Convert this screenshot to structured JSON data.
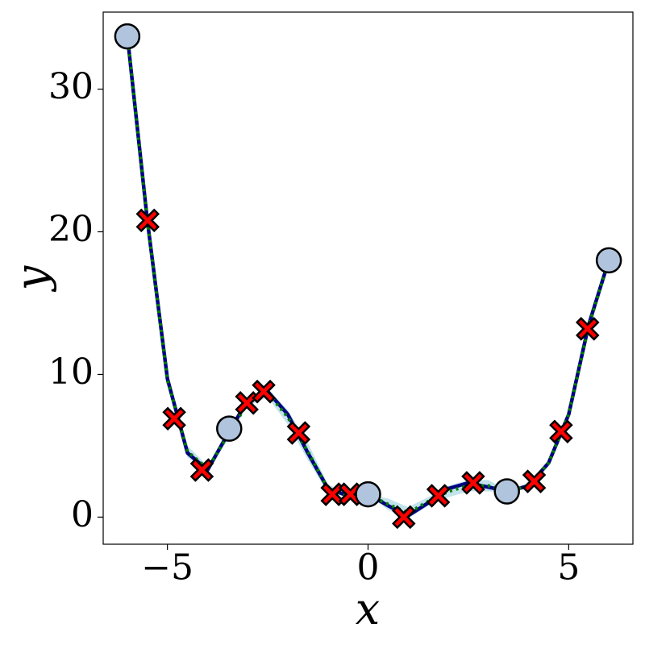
{
  "chart_data": {
    "type": "line",
    "xlabel": "x",
    "ylabel": "y",
    "xlim": [
      -6.6,
      6.6
    ],
    "ylim": [
      -1.9,
      35.4
    ],
    "xticks": [
      {
        "value": -5,
        "label": "−5"
      },
      0,
      5
    ],
    "yticks": [
      0,
      10,
      20,
      30
    ],
    "x": [
      -6,
      -5.5,
      -5,
      -4.5,
      -4,
      -3.5,
      -3,
      -2.5,
      -2,
      -1.5,
      -1,
      -0.5,
      0,
      0.5,
      1,
      1.5,
      2,
      2.5,
      3,
      3.5,
      4,
      4.5,
      5,
      5.5,
      6
    ],
    "band": {
      "color": "#add8e6",
      "lower": [
        33.8,
        20.7,
        9.3,
        4.2,
        3.2,
        5.4,
        7.8,
        8.4,
        6.5,
        4.0,
        1.7,
        1.4,
        1.6,
        0.5,
        -0.1,
        0.8,
        1.4,
        1.8,
        1.8,
        1.8,
        2.0,
        3.6,
        7.0,
        13.2,
        18.0
      ],
      "upper": [
        33.8,
        20.9,
        9.9,
        5.0,
        3.6,
        6.0,
        8.2,
        9.0,
        7.5,
        5.2,
        2.3,
        1.6,
        1.6,
        1.3,
        0.7,
        1.4,
        2.2,
        2.6,
        2.6,
        1.8,
        2.4,
        4.0,
        7.4,
        13.6,
        18.0
      ]
    },
    "series": [
      {
        "color": "#000080",
        "style": "solid",
        "values": [
          33.8,
          20.8,
          9.7,
          4.5,
          3.3,
          5.8,
          8.2,
          8.8,
          7.2,
          4.5,
          2.0,
          1.5,
          1.6,
          0.8,
          0.1,
          1.0,
          2.0,
          2.4,
          2.1,
          1.8,
          2.2,
          3.8,
          7.2,
          13.5,
          18.0
        ]
      },
      {
        "color": "#008000",
        "style": "dotted",
        "values": [
          33.8,
          20.8,
          9.6,
          4.6,
          3.4,
          5.7,
          8.0,
          8.7,
          7.0,
          4.6,
          2.0,
          1.5,
          1.6,
          0.9,
          0.3,
          1.1,
          1.8,
          2.2,
          2.2,
          1.8,
          2.2,
          3.8,
          7.2,
          13.4,
          18.0
        ]
      }
    ],
    "points": [
      {
        "marker": "X",
        "color": "#ff0000",
        "x": [
          -5.49,
          -4.83,
          -4.14,
          -3.02,
          -2.6,
          -1.73,
          -0.89,
          -0.44,
          0.89,
          1.75,
          2.62,
          4.14,
          4.81,
          5.47
        ],
        "values": [
          20.8,
          6.9,
          3.3,
          8.0,
          8.8,
          5.9,
          1.6,
          1.6,
          0.0,
          1.5,
          2.4,
          2.5,
          6.0,
          13.2
        ]
      },
      {
        "marker": "o",
        "color": "#b0c4de",
        "x": [
          -6.0,
          -3.46,
          0.0,
          3.46,
          6.0
        ],
        "values": [
          33.7,
          6.2,
          1.6,
          1.8,
          18.0
        ]
      }
    ]
  }
}
